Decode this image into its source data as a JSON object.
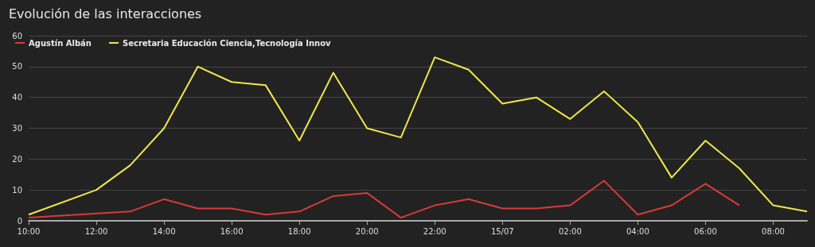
{
  "chart_data": {
    "type": "line",
    "title": "Evolución de las interacciones",
    "categories": [
      "10:00",
      null,
      "12:00",
      null,
      "14:00",
      null,
      "16:00",
      null,
      "18:00",
      null,
      "20:00",
      null,
      "22:00",
      null,
      "15/07",
      null,
      "02:00",
      null,
      "04:00",
      null,
      "06:00",
      null,
      "08:00",
      null
    ],
    "series": [
      {
        "name": "Agustín Albán",
        "color": "#d93a3a",
        "values": [
          1,
          null,
          null,
          3,
          7,
          4,
          4,
          2,
          3,
          8,
          9,
          1,
          5,
          7,
          4,
          4,
          5,
          13,
          2,
          5,
          12,
          5,
          null,
          null
        ]
      },
      {
        "name": "Secretaria Educación Ciencia,Tecnología Innov",
        "color": "#f2e64a",
        "values": [
          2,
          null,
          10,
          18,
          30,
          50,
          45,
          44,
          26,
          48,
          30,
          27,
          53,
          49,
          38,
          40,
          33,
          42,
          32,
          14,
          26,
          17,
          5,
          3
        ]
      }
    ],
    "ylim": [
      0,
      60
    ],
    "yticks": [
      0,
      10,
      20,
      30,
      40,
      50,
      60
    ],
    "grid": "y",
    "legend": "top left",
    "marker": "none",
    "line_style": "solid"
  }
}
